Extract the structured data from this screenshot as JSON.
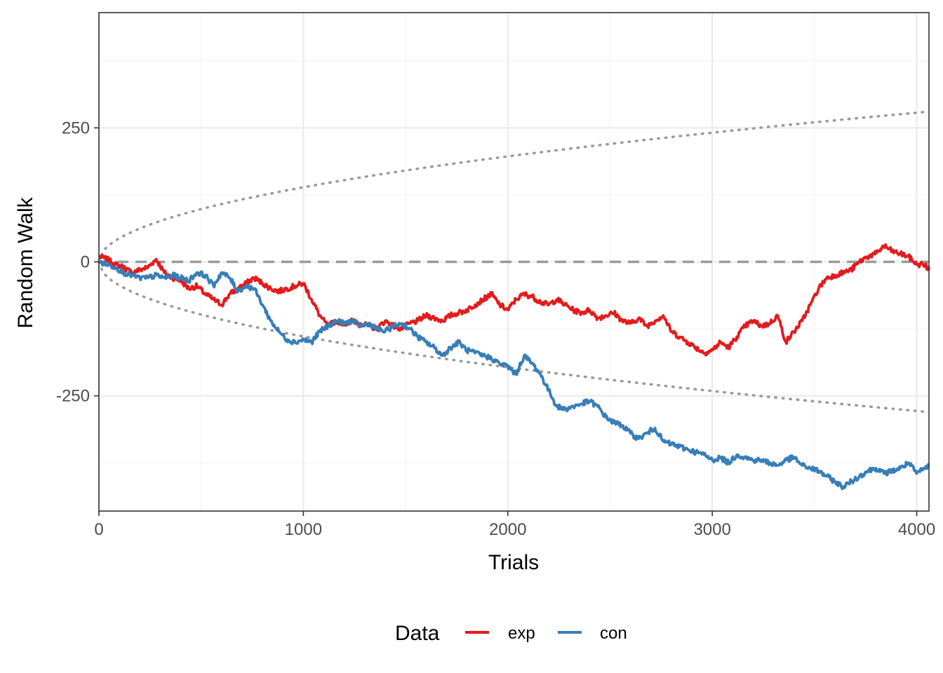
{
  "chart_data": {
    "type": "line",
    "title": "",
    "xlabel": "Trials",
    "ylabel": "Random Walk",
    "xlim": [
      0,
      4060
    ],
    "ylim": [
      -465,
      465
    ],
    "x_ticks": [
      0,
      1000,
      2000,
      3000,
      4000
    ],
    "x_tick_labels": [
      "0",
      "1000",
      "2000",
      "3000",
      "4000"
    ],
    "y_ticks": [
      -250,
      0,
      250
    ],
    "y_tick_labels": [
      "-250",
      "0",
      "250"
    ],
    "grid": true,
    "legend": {
      "title": "Data",
      "position": "bottom"
    },
    "reference_lines": {
      "zero_line": {
        "y": 0,
        "style": "dashed",
        "color": "#999999"
      },
      "bounds": {
        "formula": "±4.4·sqrt(trials)",
        "style": "dotted",
        "color": "#999999"
      }
    },
    "series": [
      {
        "name": "exp",
        "color": "#E41A1C",
        "x": [
          0,
          40,
          80,
          120,
          160,
          200,
          240,
          280,
          320,
          360,
          400,
          440,
          480,
          520,
          560,
          600,
          640,
          680,
          720,
          760,
          800,
          840,
          880,
          920,
          960,
          1000,
          1040,
          1080,
          1120,
          1160,
          1200,
          1240,
          1280,
          1320,
          1360,
          1400,
          1440,
          1480,
          1520,
          1560,
          1600,
          1640,
          1680,
          1720,
          1760,
          1800,
          1840,
          1880,
          1920,
          1960,
          2000,
          2040,
          2080,
          2120,
          2160,
          2200,
          2240,
          2280,
          2320,
          2360,
          2400,
          2440,
          2480,
          2520,
          2560,
          2600,
          2640,
          2680,
          2720,
          2760,
          2800,
          2840,
          2880,
          2920,
          2960,
          3000,
          3040,
          3080,
          3120,
          3160,
          3200,
          3240,
          3280,
          3320,
          3360,
          3400,
          3440,
          3480,
          3520,
          3560,
          3600,
          3640,
          3680,
          3720,
          3760,
          3800,
          3840,
          3880,
          3920,
          3960,
          4000,
          4040,
          4060
        ],
        "y": [
          10,
          5,
          -5,
          -10,
          -20,
          -15,
          -10,
          5,
          -20,
          -30,
          -35,
          -50,
          -45,
          -60,
          -70,
          -80,
          -60,
          -50,
          -40,
          -30,
          -40,
          -50,
          -55,
          -50,
          -45,
          -40,
          -70,
          -100,
          -120,
          -110,
          -115,
          -110,
          -115,
          -120,
          -125,
          -110,
          -120,
          -125,
          -115,
          -110,
          -100,
          -105,
          -110,
          -100,
          -95,
          -90,
          -80,
          -70,
          -60,
          -80,
          -90,
          -70,
          -60,
          -65,
          -75,
          -80,
          -70,
          -80,
          -90,
          -95,
          -90,
          -105,
          -100,
          -95,
          -110,
          -115,
          -105,
          -120,
          -110,
          -100,
          -130,
          -140,
          -150,
          -160,
          -170,
          -165,
          -150,
          -160,
          -140,
          -120,
          -110,
          -120,
          -115,
          -100,
          -150,
          -130,
          -110,
          -80,
          -50,
          -30,
          -25,
          -20,
          -15,
          0,
          10,
          15,
          30,
          20,
          15,
          10,
          -5,
          -5,
          -15
        ]
      },
      {
        "name": "con",
        "color": "#377EB8",
        "x": [
          0,
          40,
          80,
          120,
          160,
          200,
          240,
          280,
          320,
          360,
          400,
          440,
          480,
          520,
          560,
          600,
          640,
          680,
          720,
          760,
          800,
          840,
          880,
          920,
          960,
          1000,
          1040,
          1080,
          1120,
          1160,
          1200,
          1240,
          1280,
          1320,
          1360,
          1400,
          1440,
          1480,
          1520,
          1560,
          1600,
          1640,
          1680,
          1720,
          1760,
          1800,
          1840,
          1880,
          1920,
          1960,
          2000,
          2040,
          2080,
          2120,
          2160,
          2200,
          2240,
          2280,
          2320,
          2360,
          2400,
          2440,
          2480,
          2520,
          2560,
          2600,
          2640,
          2680,
          2720,
          2760,
          2800,
          2840,
          2880,
          2920,
          2960,
          3000,
          3040,
          3080,
          3120,
          3160,
          3200,
          3240,
          3280,
          3320,
          3360,
          3400,
          3440,
          3480,
          3520,
          3560,
          3600,
          3640,
          3680,
          3720,
          3760,
          3800,
          3840,
          3880,
          3920,
          3960,
          4000,
          4040,
          4060
        ],
        "y": [
          0,
          -5,
          -10,
          -20,
          -25,
          -30,
          -30,
          -25,
          -30,
          -25,
          -30,
          -35,
          -20,
          -25,
          -45,
          -20,
          -30,
          -55,
          -45,
          -50,
          -80,
          -110,
          -130,
          -145,
          -150,
          -145,
          -150,
          -130,
          -120,
          -110,
          -115,
          -110,
          -120,
          -115,
          -125,
          -130,
          -120,
          -115,
          -125,
          -140,
          -150,
          -160,
          -175,
          -160,
          -150,
          -165,
          -170,
          -175,
          -180,
          -190,
          -195,
          -210,
          -175,
          -190,
          -210,
          -240,
          -270,
          -275,
          -270,
          -265,
          -260,
          -270,
          -290,
          -300,
          -305,
          -320,
          -330,
          -320,
          -310,
          -335,
          -340,
          -345,
          -350,
          -355,
          -360,
          -370,
          -365,
          -375,
          -360,
          -365,
          -370,
          -370,
          -375,
          -380,
          -370,
          -365,
          -380,
          -385,
          -390,
          -400,
          -410,
          -420,
          -410,
          -400,
          -390,
          -385,
          -395,
          -390,
          -385,
          -375,
          -395,
          -385,
          -380
        ]
      }
    ]
  }
}
